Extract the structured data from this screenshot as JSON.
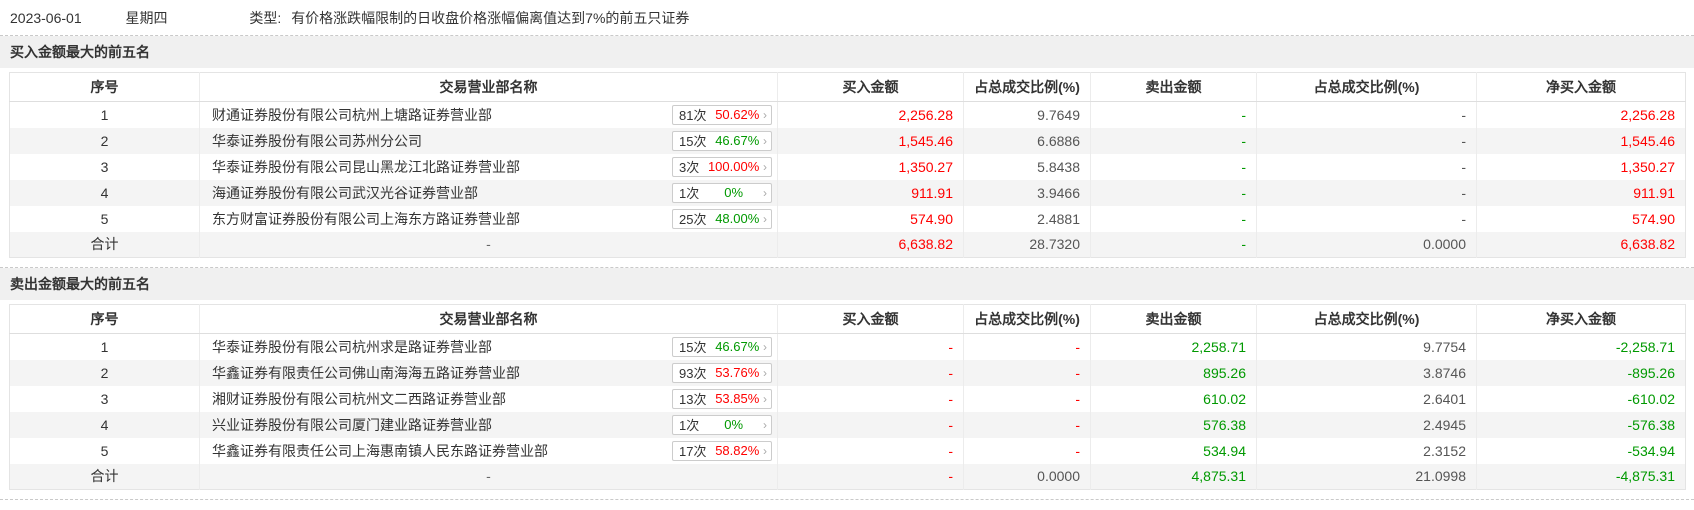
{
  "colors": {
    "red": "#ff0000",
    "green": "#009900",
    "dim": "#555555",
    "text": "#333333"
  },
  "icons": {
    "chevron_right": "›"
  },
  "header": {
    "date": "2023-06-01",
    "weekday": "星期四",
    "type_label": "类型:",
    "type_text": "有价格涨跌幅限制的日收盘价格涨幅偏离值达到7%的前五只证券"
  },
  "sections": [
    {
      "title": "买入金额最大的前五名",
      "columns": [
        "序号",
        "交易营业部名称",
        "买入金额",
        "占总成交比例(%)",
        "卖出金额",
        "占总成交比例(%)",
        "净买入金额"
      ],
      "rows": [
        {
          "no": "1",
          "name": "财通证券股份有限公司杭州上塘路证券营业部",
          "times": "81次",
          "pct": "50.62%",
          "pct_cls": "red",
          "cells": [
            {
              "v": "2,256.28",
              "cls": "red"
            },
            {
              "v": "9.7649",
              "cls": "dim"
            },
            {
              "v": "-",
              "cls": "green"
            },
            {
              "v": "-",
              "cls": "dim"
            },
            {
              "v": "2,256.28",
              "cls": "red"
            }
          ]
        },
        {
          "no": "2",
          "name": "华泰证券股份有限公司苏州分公司",
          "times": "15次",
          "pct": "46.67%",
          "pct_cls": "green",
          "cells": [
            {
              "v": "1,545.46",
              "cls": "red"
            },
            {
              "v": "6.6886",
              "cls": "dim"
            },
            {
              "v": "-",
              "cls": "green"
            },
            {
              "v": "-",
              "cls": "dim"
            },
            {
              "v": "1,545.46",
              "cls": "red"
            }
          ]
        },
        {
          "no": "3",
          "name": "华泰证券股份有限公司昆山黑龙江北路证券营业部",
          "times": "3次",
          "pct": "100.00%",
          "pct_cls": "red",
          "cells": [
            {
              "v": "1,350.27",
              "cls": "red"
            },
            {
              "v": "5.8438",
              "cls": "dim"
            },
            {
              "v": "-",
              "cls": "green"
            },
            {
              "v": "-",
              "cls": "dim"
            },
            {
              "v": "1,350.27",
              "cls": "red"
            }
          ]
        },
        {
          "no": "4",
          "name": "海通证券股份有限公司武汉光谷证券营业部",
          "times": "1次",
          "pct": "0%",
          "pct_cls": "green",
          "cells": [
            {
              "v": "911.91",
              "cls": "red"
            },
            {
              "v": "3.9466",
              "cls": "dim"
            },
            {
              "v": "-",
              "cls": "green"
            },
            {
              "v": "-",
              "cls": "dim"
            },
            {
              "v": "911.91",
              "cls": "red"
            }
          ]
        },
        {
          "no": "5",
          "name": "东方财富证券股份有限公司上海东方路证券营业部",
          "times": "25次",
          "pct": "48.00%",
          "pct_cls": "green",
          "cells": [
            {
              "v": "574.90",
              "cls": "red"
            },
            {
              "v": "2.4881",
              "cls": "dim"
            },
            {
              "v": "-",
              "cls": "green"
            },
            {
              "v": "-",
              "cls": "dim"
            },
            {
              "v": "574.90",
              "cls": "red"
            }
          ]
        }
      ],
      "total": {
        "label": "合计",
        "name": "-",
        "cells": [
          {
            "v": "6,638.82",
            "cls": "red"
          },
          {
            "v": "28.7320",
            "cls": "dim"
          },
          {
            "v": "-",
            "cls": "green"
          },
          {
            "v": "0.0000",
            "cls": "dim"
          },
          {
            "v": "6,638.82",
            "cls": "red"
          }
        ]
      }
    },
    {
      "title": "卖出金额最大的前五名",
      "columns": [
        "序号",
        "交易营业部名称",
        "买入金额",
        "占总成交比例(%)",
        "卖出金额",
        "占总成交比例(%)",
        "净买入金额"
      ],
      "rows": [
        {
          "no": "1",
          "name": "华泰证券股份有限公司杭州求是路证券营业部",
          "times": "15次",
          "pct": "46.67%",
          "pct_cls": "green",
          "cells": [
            {
              "v": "-",
              "cls": "red"
            },
            {
              "v": "-",
              "cls": "red"
            },
            {
              "v": "2,258.71",
              "cls": "green"
            },
            {
              "v": "9.7754",
              "cls": "dim"
            },
            {
              "v": "-2,258.71",
              "cls": "green"
            }
          ]
        },
        {
          "no": "2",
          "name": "华鑫证券有限责任公司佛山南海海五路证券营业部",
          "times": "93次",
          "pct": "53.76%",
          "pct_cls": "red",
          "cells": [
            {
              "v": "-",
              "cls": "red"
            },
            {
              "v": "-",
              "cls": "red"
            },
            {
              "v": "895.26",
              "cls": "green"
            },
            {
              "v": "3.8746",
              "cls": "dim"
            },
            {
              "v": "-895.26",
              "cls": "green"
            }
          ]
        },
        {
          "no": "3",
          "name": "湘财证券股份有限公司杭州文二西路证券营业部",
          "times": "13次",
          "pct": "53.85%",
          "pct_cls": "red",
          "cells": [
            {
              "v": "-",
              "cls": "red"
            },
            {
              "v": "-",
              "cls": "red"
            },
            {
              "v": "610.02",
              "cls": "green"
            },
            {
              "v": "2.6401",
              "cls": "dim"
            },
            {
              "v": "-610.02",
              "cls": "green"
            }
          ]
        },
        {
          "no": "4",
          "name": "兴业证券股份有限公司厦门建业路证券营业部",
          "times": "1次",
          "pct": "0%",
          "pct_cls": "green",
          "cells": [
            {
              "v": "-",
              "cls": "red"
            },
            {
              "v": "-",
              "cls": "red"
            },
            {
              "v": "576.38",
              "cls": "green"
            },
            {
              "v": "2.4945",
              "cls": "dim"
            },
            {
              "v": "-576.38",
              "cls": "green"
            }
          ]
        },
        {
          "no": "5",
          "name": "华鑫证券有限责任公司上海惠南镇人民东路证券营业部",
          "times": "17次",
          "pct": "58.82%",
          "pct_cls": "red",
          "cells": [
            {
              "v": "-",
              "cls": "red"
            },
            {
              "v": "-",
              "cls": "red"
            },
            {
              "v": "534.94",
              "cls": "green"
            },
            {
              "v": "2.3152",
              "cls": "dim"
            },
            {
              "v": "-534.94",
              "cls": "green"
            }
          ]
        }
      ],
      "total": {
        "label": "合计",
        "name": "-",
        "cells": [
          {
            "v": "-",
            "cls": "red"
          },
          {
            "v": "0.0000",
            "cls": "dim"
          },
          {
            "v": "4,875.31",
            "cls": "green"
          },
          {
            "v": "21.0998",
            "cls": "dim"
          },
          {
            "v": "-4,875.31",
            "cls": "green"
          }
        ]
      }
    }
  ]
}
